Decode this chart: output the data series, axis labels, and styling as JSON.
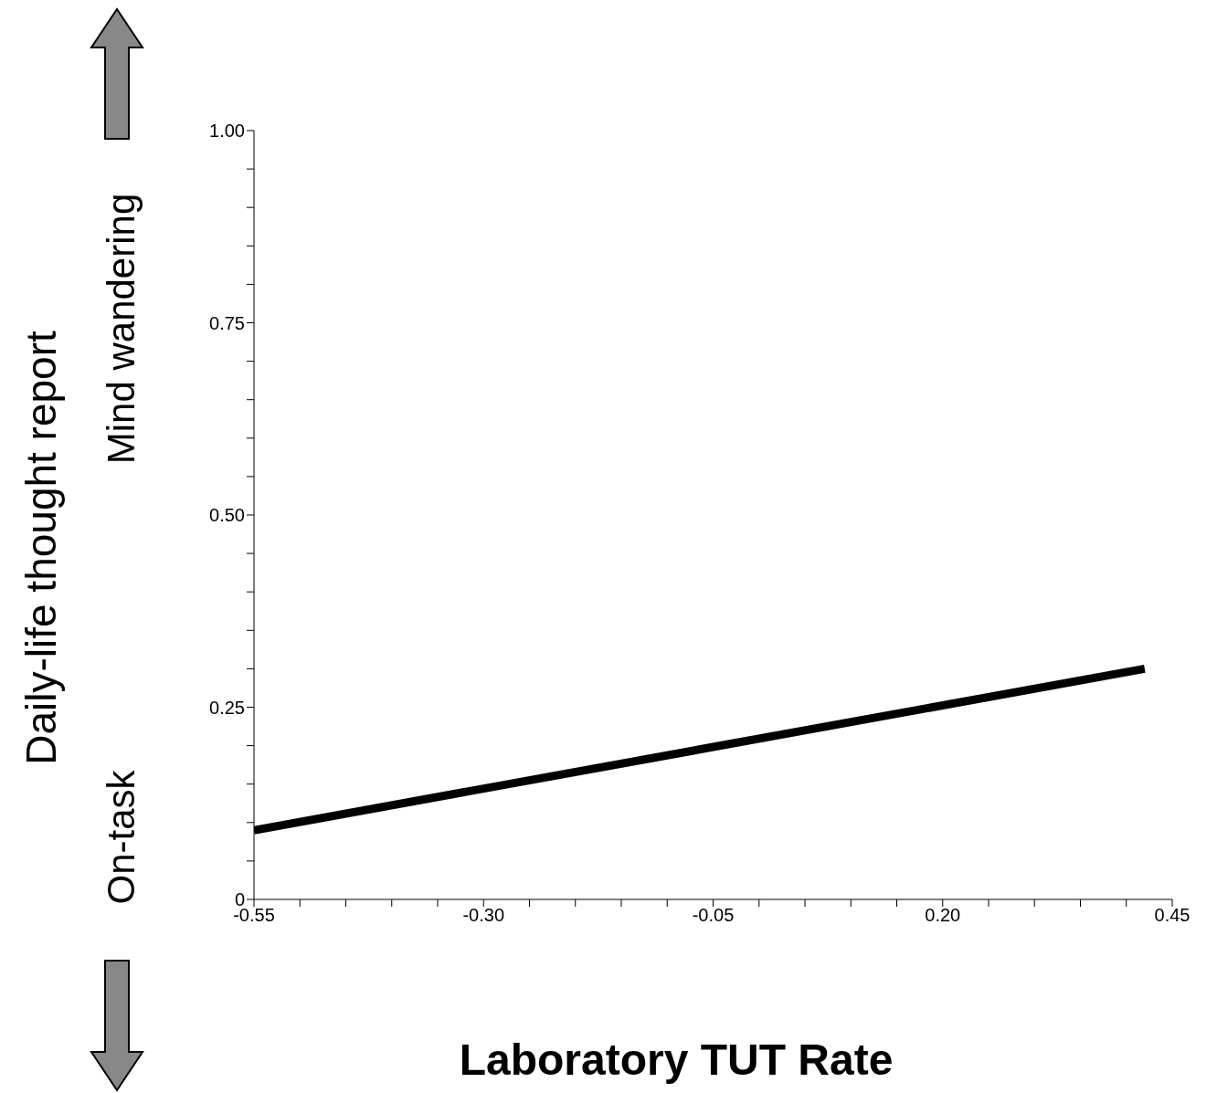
{
  "chart_data": {
    "type": "line",
    "xlabel": "Laboratory TUT Rate",
    "ylabel": "Daily-life thought report",
    "annotations": [
      "Mind wandering",
      "On-task"
    ],
    "series": [
      {
        "color": "#000000",
        "x": [
          -0.55,
          0.42
        ],
        "values": [
          0.09,
          0.3
        ]
      }
    ],
    "xlim": [
      -0.55,
      0.45
    ],
    "xticks": [
      -0.55,
      {
        "value": -0.5,
        "label": null
      },
      {
        "value": -0.45,
        "label": null
      },
      {
        "value": -0.4,
        "label": null
      },
      {
        "value": -0.35,
        "label": null
      },
      {
        "value": -0.3,
        "label": "-0.30"
      },
      {
        "value": -0.25,
        "label": null
      },
      {
        "value": -0.2,
        "label": null
      },
      {
        "value": -0.15,
        "label": null
      },
      {
        "value": -0.1,
        "label": null
      },
      -0.05,
      {
        "value": 0,
        "label": null
      },
      {
        "value": 0.05,
        "label": null
      },
      {
        "value": 0.1,
        "label": null
      },
      {
        "value": 0.15,
        "label": null
      },
      {
        "value": 0.2,
        "label": "0.20"
      },
      {
        "value": 0.25,
        "label": null
      },
      {
        "value": 0.3,
        "label": null
      },
      {
        "value": 0.35,
        "label": null
      },
      {
        "value": 0.4,
        "label": null
      },
      0.45
    ],
    "ylim": [
      0,
      1
    ],
    "yticks": [
      0,
      {
        "value": 0.05,
        "label": null
      },
      {
        "value": 0.1,
        "label": null
      },
      {
        "value": 0.15,
        "label": null
      },
      {
        "value": 0.2,
        "label": null
      },
      {
        "value": 0.25,
        "label": "0.25"
      },
      {
        "value": 0.3,
        "label": null
      },
      {
        "value": 0.35,
        "label": null
      },
      {
        "value": 0.4,
        "label": null
      },
      {
        "value": 0.45,
        "label": null
      },
      {
        "value": 0.5,
        "label": "0.50"
      },
      {
        "value": 0.55,
        "label": null
      },
      {
        "value": 0.6,
        "label": null
      },
      {
        "value": 0.65,
        "label": null
      },
      {
        "value": 0.7,
        "label": null
      },
      {
        "value": 0.75,
        "label": "0.75"
      },
      {
        "value": 0.8,
        "label": null
      },
      {
        "value": 0.85,
        "label": null
      },
      {
        "value": 0.9,
        "label": null
      },
      {
        "value": 0.95,
        "label": null
      },
      {
        "value": 1,
        "label": "1.00"
      }
    ],
    "marker": "none",
    "line_style": "solid"
  }
}
